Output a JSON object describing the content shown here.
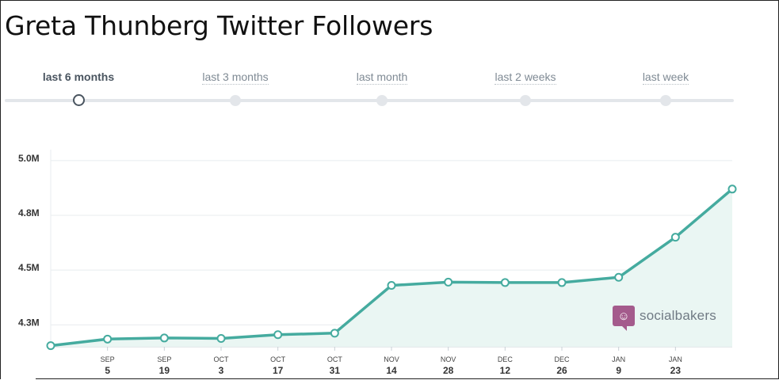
{
  "title": "Greta Thunberg Twitter Followers",
  "range_selector": {
    "options": [
      "last 6 months",
      "last 3 months",
      "last month",
      "last 2 weeks",
      "last week"
    ],
    "selected": "last 6 months"
  },
  "brand": {
    "name": "socialbakers",
    "icon": "chef-hat-speech-bubble-icon",
    "color": "#a45b8c"
  },
  "colors": {
    "line": "#45ab9f",
    "area": "#eaf6f3",
    "grid": "#e8ecef"
  },
  "chart_data": {
    "type": "area",
    "title": "Greta Thunberg Twitter Followers",
    "xlabel": "",
    "ylabel": "",
    "ylim": [
      4.15,
      5.05
    ],
    "y_ticks": [
      {
        "value": 4.25,
        "label": "4.3M"
      },
      {
        "value": 4.5,
        "label": "4.5M"
      },
      {
        "value": 4.75,
        "label": "4.8M"
      },
      {
        "value": 5.0,
        "label": "5.0M"
      }
    ],
    "x_ticks": [
      {
        "month": "SEP",
        "day": "5",
        "pos": 1
      },
      {
        "month": "SEP",
        "day": "19",
        "pos": 2
      },
      {
        "month": "OCT",
        "day": "3",
        "pos": 3
      },
      {
        "month": "OCT",
        "day": "17",
        "pos": 4
      },
      {
        "month": "OCT",
        "day": "31",
        "pos": 5
      },
      {
        "month": "NOV",
        "day": "14",
        "pos": 6
      },
      {
        "month": "NOV",
        "day": "28",
        "pos": 7
      },
      {
        "month": "DEC",
        "day": "12",
        "pos": 8
      },
      {
        "month": "DEC",
        "day": "26",
        "pos": 9
      },
      {
        "month": "JAN",
        "day": "9",
        "pos": 10
      },
      {
        "month": "JAN",
        "day": "23",
        "pos": 11
      }
    ],
    "series": [
      {
        "values": [
          4.155,
          4.185,
          4.19,
          4.188,
          4.205,
          4.212,
          4.43,
          4.445,
          4.443,
          4.443,
          4.467,
          4.65,
          4.87
        ]
      }
    ],
    "grid": true,
    "legend": "none"
  }
}
